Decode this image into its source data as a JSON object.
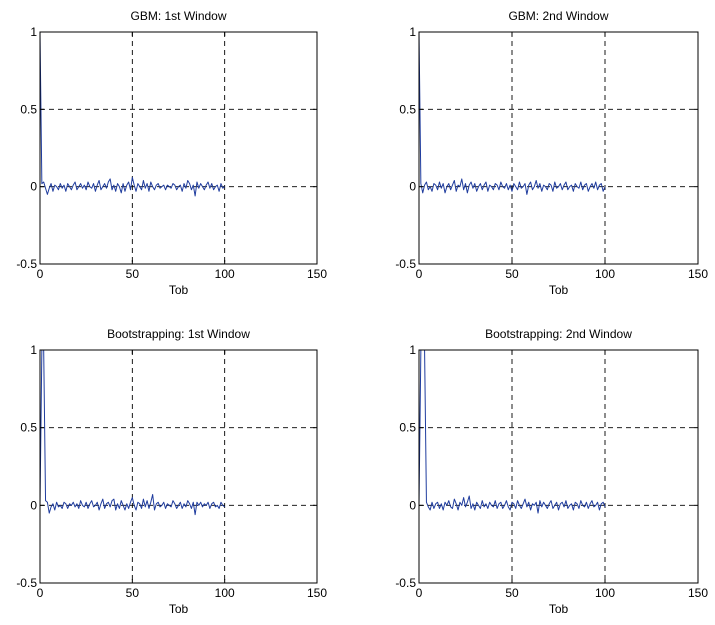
{
  "chart_data": [
    {
      "type": "line",
      "title": "GBM: 1st Window",
      "xlabel": "Tob",
      "ylabel": "",
      "xlim": [
        0,
        150
      ],
      "ylim": [
        -0.5,
        1
      ],
      "xticks": [
        "0",
        "50",
        "100",
        "150"
      ],
      "yticks": [
        "-0.5",
        "0",
        "0.5",
        "1"
      ],
      "grid": true,
      "series": [
        {
          "color": "#1f3c9e",
          "x": [
            0,
            1,
            2,
            3,
            4,
            5,
            6,
            7,
            8,
            9,
            10,
            11,
            12,
            13,
            14,
            15,
            16,
            17,
            18,
            19,
            20,
            21,
            22,
            23,
            24,
            25,
            26,
            27,
            28,
            29,
            30,
            31,
            32,
            33,
            34,
            35,
            36,
            37,
            38,
            39,
            40,
            41,
            42,
            43,
            44,
            45,
            46,
            47,
            48,
            49,
            50,
            51,
            52,
            53,
            54,
            55,
            56,
            57,
            58,
            59,
            60,
            61,
            62,
            63,
            64,
            65,
            66,
            67,
            68,
            69,
            70,
            71,
            72,
            73,
            74,
            75,
            76,
            77,
            78,
            79,
            80,
            81,
            82,
            83,
            84,
            85,
            86,
            87,
            88,
            89,
            90,
            91,
            92,
            93,
            94,
            95,
            96,
            97,
            98,
            99,
            100
          ],
          "y": [
            1,
            0.02,
            0.03,
            -0.01,
            -0.05,
            -0.01,
            0.02,
            -0.03,
            0.01,
            0,
            -0.02,
            0.02,
            -0.01,
            0.01,
            -0.03,
            0.02,
            0,
            -0.02,
            0.01,
            0.03,
            -0.02,
            0,
            0.02,
            -0.01,
            0.01,
            -0.02,
            0.03,
            0,
            -0.01,
            0.02,
            -0.03,
            0.01,
            0.04,
            -0.02,
            0,
            0.02,
            -0.01,
            0.03,
            0.05,
            -0.02,
            0.01,
            -0.03,
            0.02,
            0,
            -0.04,
            0.02,
            -0.03,
            0.01,
            0.03,
            -0.02,
            0.06,
            0.01,
            -0.03,
            0.02,
            0,
            -0.02,
            0.04,
            -0.01,
            0.02,
            -0.03,
            0.03,
            0,
            -0.02,
            0.01,
            0.02,
            -0.01,
            0,
            0.01,
            -0.02,
            0.01,
            0,
            -0.01,
            0.02,
            0.01,
            -0.02,
            0,
            0.01,
            -0.03,
            0.02,
            -0.01,
            0.04,
            0.02,
            -0.02,
            0.01,
            -0.06,
            0.03,
            -0.01,
            0.02,
            0,
            -0.02,
            0.01,
            0.03,
            -0.01,
            0.02,
            -0.02,
            0,
            0.01,
            -0.03,
            0.02,
            -0.01,
            0
          ]
        }
      ]
    },
    {
      "type": "line",
      "title": "GBM: 2nd Window",
      "xlabel": "Tob",
      "ylabel": "",
      "xlim": [
        0,
        150
      ],
      "ylim": [
        -0.5,
        1
      ],
      "xticks": [
        "0",
        "50",
        "100",
        "150"
      ],
      "yticks": [
        "-0.5",
        "0",
        "0.5",
        "1"
      ],
      "grid": true,
      "series": [
        {
          "color": "#1f3c9e",
          "x": [
            0,
            1,
            2,
            3,
            4,
            5,
            6,
            7,
            8,
            9,
            10,
            11,
            12,
            13,
            14,
            15,
            16,
            17,
            18,
            19,
            20,
            21,
            22,
            23,
            24,
            25,
            26,
            27,
            28,
            29,
            30,
            31,
            32,
            33,
            34,
            35,
            36,
            37,
            38,
            39,
            40,
            41,
            42,
            43,
            44,
            45,
            46,
            47,
            48,
            49,
            50,
            51,
            52,
            53,
            54,
            55,
            56,
            57,
            58,
            59,
            60,
            61,
            62,
            63,
            64,
            65,
            66,
            67,
            68,
            69,
            70,
            71,
            72,
            73,
            74,
            75,
            76,
            77,
            78,
            79,
            80,
            81,
            82,
            83,
            84,
            85,
            86,
            87,
            88,
            89,
            90,
            91,
            92,
            93,
            94,
            95,
            96,
            97,
            98,
            99,
            100
          ],
          "y": [
            1,
            0.02,
            -0.04,
            0.01,
            0.03,
            -0.02,
            0,
            -0.03,
            0.02,
            0.01,
            -0.02,
            0.03,
            -0.01,
            0.02,
            -0.04,
            0,
            0.02,
            -0.02,
            0.01,
            0.04,
            -0.03,
            0.01,
            0,
            0.05,
            -0.02,
            0.02,
            -0.04,
            0.01,
            0.03,
            -0.01,
            0.02,
            -0.03,
            0,
            0.02,
            -0.02,
            0.01,
            0.03,
            -0.03,
            0.01,
            0,
            -0.02,
            0.02,
            0.01,
            -0.02,
            0.03,
            0,
            -0.01,
            0.02,
            -0.02,
            0.01,
            -0.03,
            0.02,
            0,
            -0.02,
            0.03,
            -0.01,
            0,
            0.02,
            -0.05,
            0.01,
            0.03,
            -0.02,
            0,
            0.04,
            -0.01,
            0.02,
            -0.03,
            0.01,
            0,
            -0.02,
            0.02,
            0.01,
            -0.03,
            0.03,
            -0.01,
            0,
            0.02,
            -0.02,
            0.01,
            0.03,
            -0.02,
            0,
            0.01,
            -0.03,
            0.02,
            0,
            -0.01,
            0.03,
            -0.02,
            0.01,
            0.02,
            -0.03,
            0,
            0.02,
            -0.01,
            0.03,
            -0.02,
            0.01,
            0.02,
            -0.03,
            0
          ]
        }
      ]
    },
    {
      "type": "line",
      "title": "Bootstrapping: 1st Window",
      "xlabel": "Tob",
      "ylabel": "",
      "xlim": [
        0,
        150
      ],
      "ylim": [
        -0.5,
        1
      ],
      "xticks": [
        "0",
        "50",
        "100",
        "150"
      ],
      "yticks": [
        "-0.5",
        "0",
        "0.5",
        "1"
      ],
      "grid": true,
      "series": [
        {
          "color": "#1f3c9e",
          "x": [
            0,
            1,
            2,
            3,
            4,
            5,
            6,
            7,
            8,
            9,
            10,
            11,
            12,
            13,
            14,
            15,
            16,
            17,
            18,
            19,
            20,
            21,
            22,
            23,
            24,
            25,
            26,
            27,
            28,
            29,
            30,
            31,
            32,
            33,
            34,
            35,
            36,
            37,
            38,
            39,
            40,
            41,
            42,
            43,
            44,
            45,
            46,
            47,
            48,
            49,
            50,
            51,
            52,
            53,
            54,
            55,
            56,
            57,
            58,
            59,
            60,
            61,
            62,
            63,
            64,
            65,
            66,
            67,
            68,
            69,
            70,
            71,
            72,
            73,
            74,
            75,
            76,
            77,
            78,
            79,
            80,
            81,
            82,
            83,
            84,
            85,
            86,
            87,
            88,
            89,
            90,
            91,
            92,
            93,
            94,
            95,
            96,
            97,
            98,
            99,
            100
          ],
          "y": [
            0,
            1,
            1,
            0.03,
            0.02,
            -0.05,
            -0.01,
            0.01,
            -0.03,
            0.02,
            -0.01,
            0,
            -0.02,
            0.02,
            0.01,
            -0.02,
            0.01,
            0,
            0.02,
            -0.01,
            0.01,
            -0.02,
            0.03,
            0,
            -0.01,
            0.02,
            -0.02,
            0.01,
            0.03,
            -0.01,
            0,
            0.02,
            -0.03,
            0.01,
            0.04,
            -0.02,
            0.01,
            0.02,
            -0.01,
            0.03,
            0.04,
            -0.03,
            0.01,
            -0.02,
            0.03,
            0,
            -0.03,
            0.01,
            -0.02,
            0.02,
            0.05,
            0,
            -0.03,
            0.02,
            0.01,
            -0.02,
            0.04,
            -0.01,
            0.03,
            -0.02,
            0.02,
            0.07,
            -0.03,
            0.01,
            0.02,
            -0.01,
            0,
            0.02,
            -0.02,
            0.01,
            0,
            -0.01,
            0.03,
            0.01,
            -0.02,
            0,
            0.02,
            -0.02,
            0.01,
            -0.01,
            0.03,
            0.01,
            -0.02,
            0.02,
            -0.06,
            0.02,
            0,
            0.02,
            -0.01,
            0.01,
            0,
            0.02,
            -0.02,
            0.01,
            0.02,
            -0.01,
            0,
            -0.02,
            0.02,
            0,
            -0.01
          ]
        }
      ]
    },
    {
      "type": "line",
      "title": "Bootstrapping: 2nd Window",
      "xlabel": "Tob",
      "ylabel": "",
      "xlim": [
        0,
        150
      ],
      "ylim": [
        -0.5,
        1
      ],
      "xticks": [
        "0",
        "50",
        "100",
        "150"
      ],
      "yticks": [
        "-0.5",
        "0",
        "0.5",
        "1"
      ],
      "grid": true,
      "series": [
        {
          "color": "#1f3c9e",
          "x": [
            0,
            1,
            2,
            3,
            4,
            5,
            6,
            7,
            8,
            9,
            10,
            11,
            12,
            13,
            14,
            15,
            16,
            17,
            18,
            19,
            20,
            21,
            22,
            23,
            24,
            25,
            26,
            27,
            28,
            29,
            30,
            31,
            32,
            33,
            34,
            35,
            36,
            37,
            38,
            39,
            40,
            41,
            42,
            43,
            44,
            45,
            46,
            47,
            48,
            49,
            50,
            51,
            52,
            53,
            54,
            55,
            56,
            57,
            58,
            59,
            60,
            61,
            62,
            63,
            64,
            65,
            66,
            67,
            68,
            69,
            70,
            71,
            72,
            73,
            74,
            75,
            76,
            77,
            78,
            79,
            80,
            81,
            82,
            83,
            84,
            85,
            86,
            87,
            88,
            89,
            90,
            91,
            92,
            93,
            94,
            95,
            96,
            97,
            98,
            99,
            100
          ],
          "y": [
            0,
            1,
            1,
            1,
            0.02,
            -0.01,
            -0.03,
            0.02,
            -0.02,
            0.01,
            0.02,
            -0.02,
            0.01,
            -0.03,
            0.02,
            0,
            0.03,
            -0.01,
            -0.02,
            0.04,
            0.01,
            -0.03,
            0.02,
            0,
            0.05,
            -0.01,
            0.02,
            0.06,
            -0.02,
            0.01,
            -0.03,
            0.02,
            0,
            -0.02,
            0.03,
            -0.01,
            0.01,
            -0.02,
            0.02,
            0,
            -0.01,
            0.03,
            -0.02,
            0.01,
            0.02,
            -0.02,
            0,
            0.03,
            -0.01,
            -0.03,
            0.02,
            0.01,
            -0.02,
            0.03,
            0,
            -0.02,
            0.01,
            0.04,
            -0.01,
            0.02,
            -0.03,
            0.01,
            0,
            0.02,
            -0.05,
            0.03,
            -0.01,
            0.02,
            0,
            -0.02,
            0.01,
            0.03,
            -0.02,
            0,
            0.02,
            -0.03,
            0.01,
            0.02,
            -0.01,
            0.03,
            -0.02,
            0,
            0.01,
            -0.03,
            0.02,
            0.01,
            -0.02,
            0.03,
            0,
            -0.01,
            0.02,
            -0.02,
            0.01,
            0.03,
            -0.01,
            0,
            0.02,
            -0.03,
            0.01,
            0.02,
            -0.01
          ]
        }
      ]
    }
  ]
}
